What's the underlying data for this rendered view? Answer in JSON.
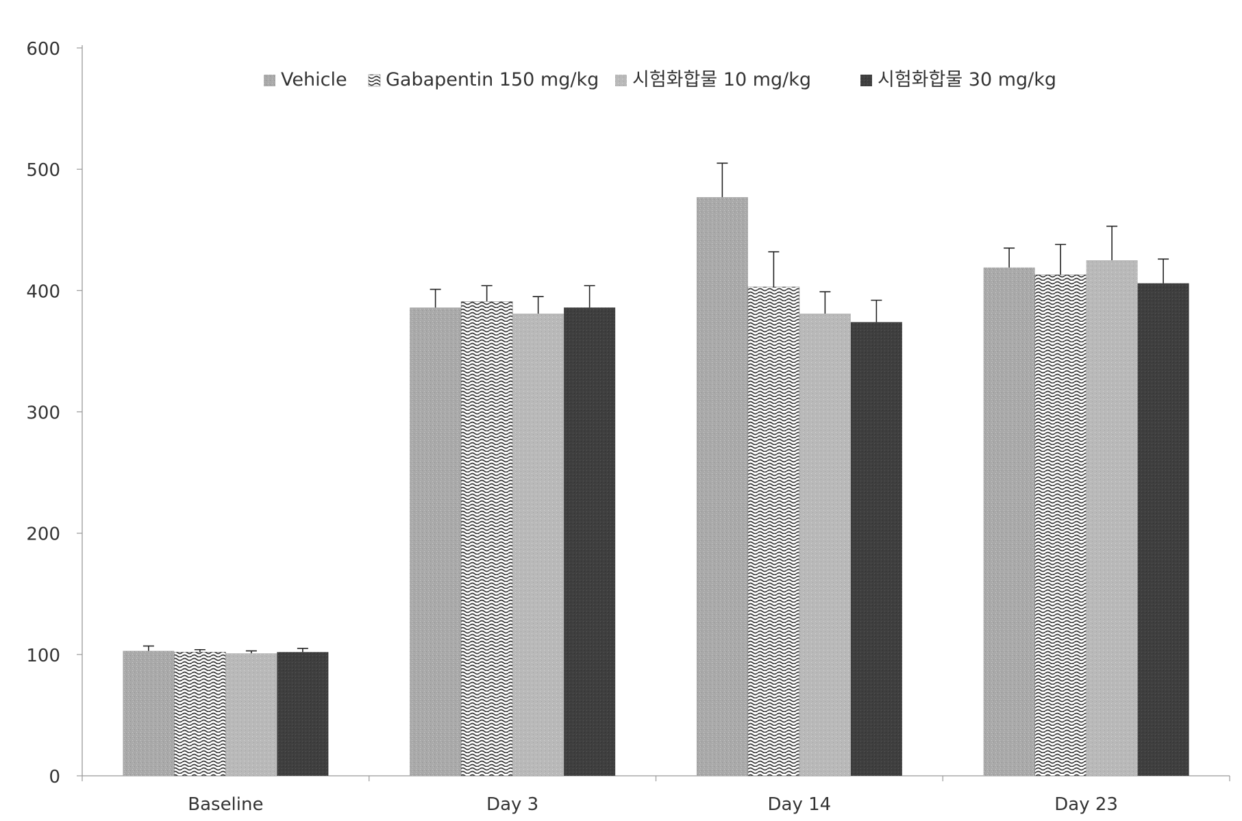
{
  "chart_data": {
    "type": "bar",
    "title": "",
    "xlabel": "",
    "ylabel": "",
    "ylim": [
      0,
      600
    ],
    "yticks": [
      0,
      100,
      200,
      300,
      400,
      500,
      600
    ],
    "grid": false,
    "legend_position": "top-center",
    "categories": [
      "Baseline",
      "Day 3",
      "Day 14",
      "Day 23"
    ],
    "series": [
      {
        "name": "Vehicle",
        "values": [
          103,
          386,
          477,
          419
        ],
        "errors": [
          4,
          15,
          28,
          16
        ],
        "color": "#aaaaaa",
        "pattern": "speckle"
      },
      {
        "name": "Gabapentin 150 mg/kg",
        "values": [
          102,
          391,
          403,
          413
        ],
        "errors": [
          2,
          13,
          29,
          25
        ],
        "color": "#ffffff",
        "pattern": "wave"
      },
      {
        "name": "시험화합물 10 mg/kg",
        "values": [
          101,
          381,
          381,
          425
        ],
        "errors": [
          2,
          14,
          18,
          28
        ],
        "color": "#bbbbbb",
        "pattern": "speckle-light"
      },
      {
        "name": "시험화합물 30 mg/kg",
        "values": [
          102,
          386,
          374,
          406
        ],
        "errors": [
          3,
          18,
          18,
          20
        ],
        "color": "#444444",
        "pattern": "dark"
      }
    ]
  }
}
